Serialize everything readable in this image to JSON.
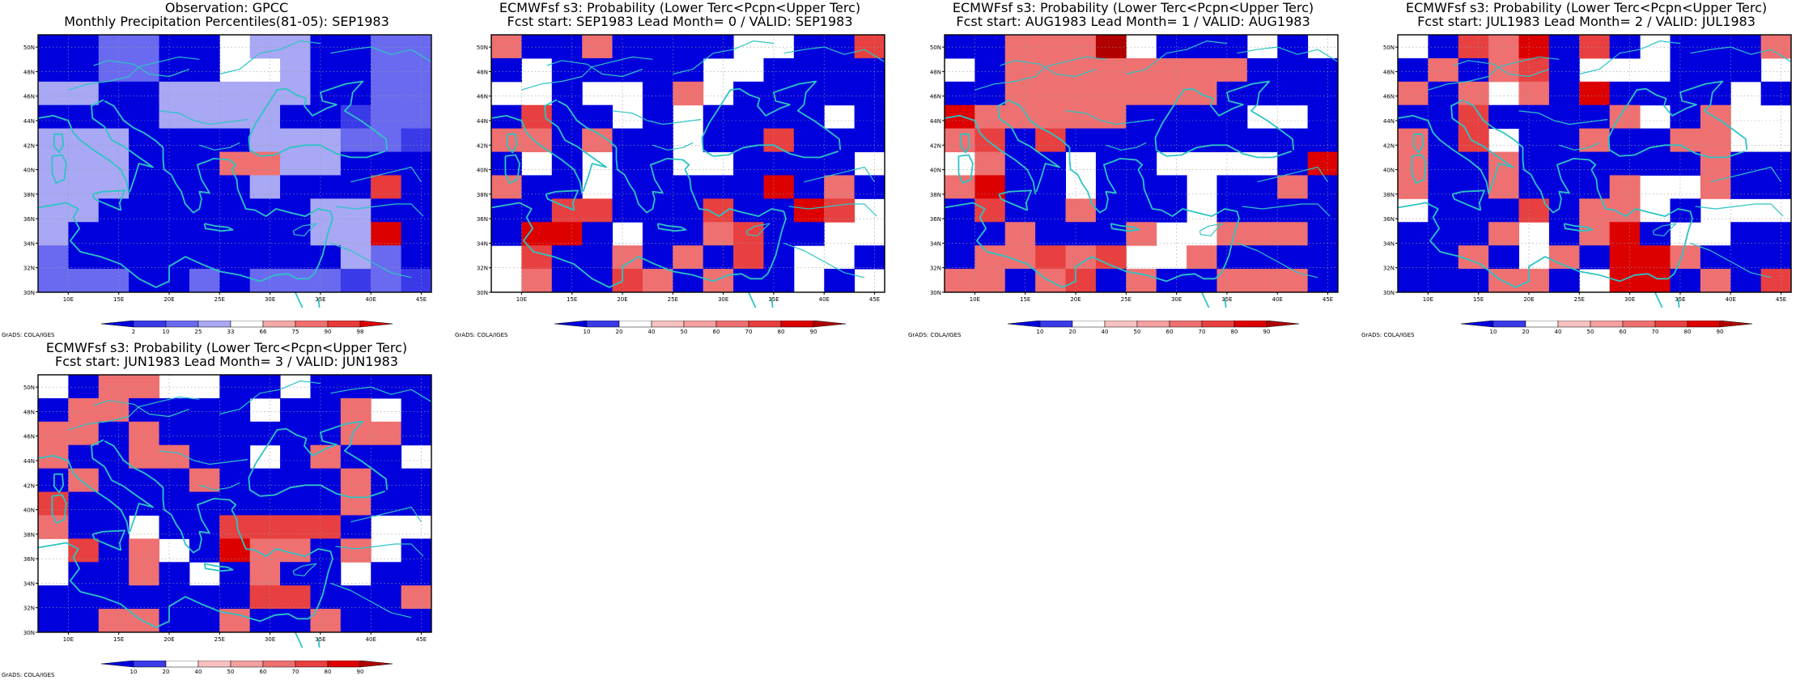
{
  "map_meta": {
    "lon_range": [
      7,
      46
    ],
    "lat_range": [
      30,
      51
    ],
    "lon_ticks": [
      "10E",
      "15E",
      "20E",
      "25E",
      "30E",
      "35E",
      "40E",
      "45E"
    ],
    "lat_ticks": [
      "30N",
      "32N",
      "34N",
      "36N",
      "38N",
      "40N",
      "42N",
      "44N",
      "46N",
      "48N",
      "50N"
    ],
    "grid_cols": 13,
    "grid_rows": 11,
    "coastline_color": "#2ec4c4",
    "credit": "GrADS: COLA/IGES"
  },
  "panels": [
    {
      "title_line1": "Observation: GPCC",
      "title_line2": "Monthly Precipitation Percentiles(81-05): SEP1983",
      "colorbar": {
        "labels": [
          "2",
          "10",
          "25",
          "33",
          "66",
          "75",
          "90",
          "98"
        ],
        "colors": [
          "#0000dd",
          "#3a3ae8",
          "#6a6af0",
          "#a8a8f4",
          "#ffffff",
          "#f4a8a8",
          "#f07070",
          "#e83a3a",
          "#dd0000"
        ]
      },
      "cells": [
        "0022004330022",
        "0022004430022",
        "3300333330022",
        "0000333300122",
        "3330000333221",
        "3330006633000",
        "3330000300070",
        "3300000003300",
        "3000000003380",
        "2000000000320",
        "2220020222121"
      ]
    },
    {
      "title_line1": "ECMWFsf s3: Probability (Lower Terc<Pcpn<Upper Terc)",
      "title_line2": "Fcst start: SEP1983   Lead Month= 0 / VALID: SEP1983",
      "colorbar": {
        "labels": [
          "10",
          "20",
          "40",
          "50",
          "60",
          "70",
          "80",
          "90"
        ],
        "colors": [
          "#0000dd",
          "#3a3ae8",
          "#ffffff",
          "#f8c0c0",
          "#f4a0a0",
          "#ee7070",
          "#e84040",
          "#dd0000",
          "#b00000"
        ]
      },
      "cells": [
        "5005000022006",
        "0200000220000",
        "2202205200000",
        "0600202000020",
        "5505002006000",
        "0202002200002",
        "5002000007050",
        "0066000600762",
        "0770200560022",
        "2600505060220",
        "2500650500202"
      ]
    },
    {
      "title_line1": "ECMWFsf s3: Probability (Lower Terc<Pcpn<Upper Terc)",
      "title_line2": "Fcst start: AUG1983   Lead Month= 1 / VALID: AUG1983",
      "colorbar": {
        "labels": [
          "10",
          "20",
          "40",
          "50",
          "60",
          "70",
          "80",
          "90"
        ],
        "colors": [
          "#0000dd",
          "#3a3ae8",
          "#ffffff",
          "#f8c0c0",
          "#f4a0a0",
          "#ee7070",
          "#e84040",
          "#dd0000",
          "#b00000"
        ]
      },
      "cells": [
        "0055582000202",
        "2055555555000",
        "0055555550000",
        "7555550000220",
        "5606000000000",
        "2500200222207",
        "5700200020050",
        "0600500020000",
        "0050005225550",
        "0556562250000",
        "5505605005550"
      ]
    },
    {
      "title_line1": "ECMWFsf s3: Probability (Lower Terc<Pcpn<Upper Terc)",
      "title_line2": "Fcst start: JUL1983   Lead Month= 2 / VALID: JUL1983",
      "colorbar": {
        "labels": [
          "10",
          "20",
          "40",
          "50",
          "60",
          "70",
          "80",
          "90"
        ],
        "colors": [
          "#0000dd",
          "#3a3ae8",
          "#ffffff",
          "#f8c0c0",
          "#f4a0a0",
          "#ee7070",
          "#e84040",
          "#dd0000",
          "#b00000"
        ]
      },
      "cells": [
        "2065706020005",
        "0505602220002",
        "5052507000020",
        "0060000520522",
        "5062005005522",
        "5005000000500",
        "5005000522500",
        "2000605520222",
        "0005205702200",
        "0050250775000",
        "0005502770506"
      ]
    },
    {
      "title_line1": "ECMWFsf s3: Probability (Lower Terc<Pcpn<Upper Terc)",
      "title_line2": "Fcst start: JUN1983   Lead Month= 3 / VALID: JUN1983",
      "colorbar": {
        "labels": [
          "10",
          "20",
          "40",
          "50",
          "60",
          "70",
          "80",
          "90"
        ],
        "colors": [
          "#0000dd",
          "#3a3ae8",
          "#ffffff",
          "#f8c0c0",
          "#f4a0a0",
          "#ee7070",
          "#e84040",
          "#dd0000",
          "#b00000"
        ]
      },
      "cells": [
        "2055220020000",
        "0550000200520",
        "5505000000550",
        "5005500205002",
        "0500050000500",
        "6000000000500",
        "5002006666022",
        "2605207550520",
        "2005020500200",
        "0000000660005",
        "0055005005000"
      ]
    }
  ]
}
